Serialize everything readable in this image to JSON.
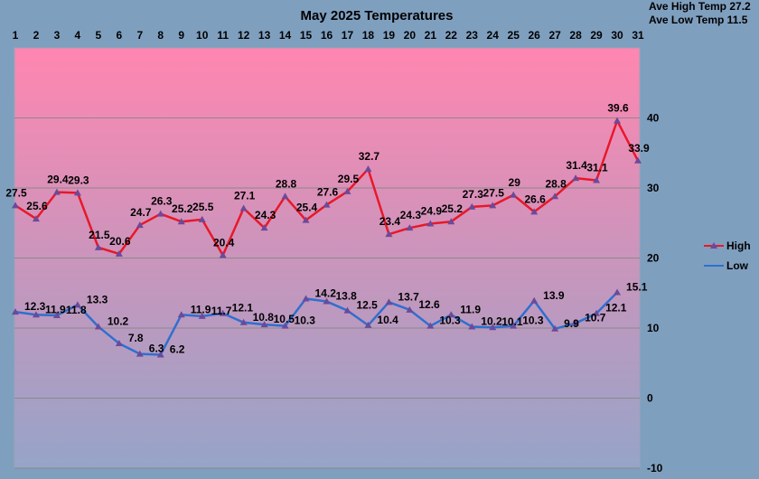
{
  "chart_data": {
    "type": "line",
    "title": "May 2025 Temperatures",
    "categories": [
      "1",
      "2",
      "3",
      "4",
      "5",
      "6",
      "7",
      "8",
      "9",
      "10",
      "11",
      "12",
      "13",
      "14",
      "15",
      "16",
      "17",
      "18",
      "19",
      "20",
      "21",
      "22",
      "23",
      "24",
      "25",
      "26",
      "27",
      "28",
      "29",
      "30",
      "31"
    ],
    "series": [
      {
        "name": "High",
        "color": "#e8182a",
        "values": [
          27.5,
          25.6,
          29.4,
          29.3,
          21.5,
          20.6,
          24.7,
          26.3,
          25.2,
          25.5,
          20.4,
          27.1,
          24.3,
          28.8,
          25.4,
          27.6,
          29.5,
          32.7,
          23.4,
          24.3,
          24.9,
          25.2,
          27.3,
          27.5,
          29,
          26.6,
          28.8,
          31.4,
          31.1,
          39.6,
          33.9
        ],
        "labels": [
          "27.5",
          "25.6",
          "29.4",
          "29.3",
          "21.5",
          "20.6",
          "24.7",
          "26.3",
          "25.2",
          "25.5",
          "20.4",
          "27.1",
          "24.3",
          "28.8",
          "25.4",
          "27.6",
          "29.5",
          "32.7",
          "23.4",
          "24.3",
          "24.9",
          "25.2",
          "27.3",
          "27.5",
          "29",
          "26.6",
          "28.8",
          "31.4",
          "31.1",
          "39.6",
          "33.9"
        ]
      },
      {
        "name": "Low",
        "color": "#2f6fd0",
        "values": [
          12.3,
          11.9,
          11.8,
          13.3,
          10.2,
          7.8,
          6.3,
          6.2,
          11.9,
          11.7,
          12.1,
          10.8,
          10.5,
          10.3,
          14.2,
          13.8,
          12.5,
          10.4,
          13.7,
          12.6,
          10.3,
          11.9,
          10.2,
          10.1,
          10.3,
          13.9,
          9.9,
          10.7,
          12.1,
          15.1,
          null
        ],
        "labels": [
          "12.3",
          "11.9",
          "11.8",
          "13.3",
          "10.2",
          "7.8",
          "6.3",
          "6.2",
          "11.9",
          "11.7",
          "12.1",
          "10.8",
          "10.5",
          "10.3",
          "14.2",
          "13.8",
          "12.5",
          "10.4",
          "13.7",
          "12.6",
          "10.3",
          "11.9",
          "10.2",
          "10.1",
          "10.3",
          "13.9",
          "9.9",
          "10.7",
          "12.1",
          "15.1",
          ""
        ]
      }
    ],
    "ylim": [
      -10,
      50
    ],
    "yticks": [
      "-10",
      "0",
      "10",
      "20",
      "30",
      "40"
    ],
    "grid": true,
    "legend_position": "right",
    "annotations": [
      "Ave High Temp 27.2",
      "Ave Low Temp 11.5"
    ],
    "background_gradient": [
      "#ff86b0",
      "#96a4c8"
    ]
  }
}
